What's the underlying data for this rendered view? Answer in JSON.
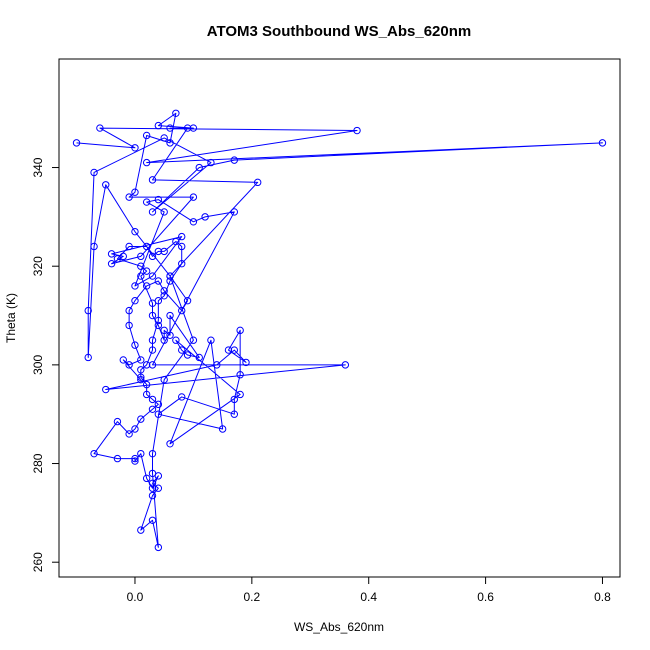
{
  "chart_data": {
    "type": "line",
    "title": "ATOM3 Southbound WS_Abs_620nm",
    "xlabel": "WS_Abs_620nm",
    "ylabel": "Theta (K)",
    "xlim": [
      -0.13,
      0.83
    ],
    "ylim": [
      257,
      362
    ],
    "x_ticks": [
      0.0,
      0.2,
      0.4,
      0.6,
      0.8
    ],
    "x_tick_labels": [
      "0.0",
      "0.2",
      "0.4",
      "0.6",
      "0.8"
    ],
    "y_ticks": [
      260,
      280,
      300,
      320,
      340
    ],
    "y_tick_labels": [
      "260",
      "280",
      "300",
      "320",
      "340"
    ],
    "grid": false,
    "marker": "open-circle",
    "series": [
      {
        "color": "#0000ff",
        "points": [
          [
            -0.1,
            345
          ],
          [
            0.0,
            344
          ],
          [
            -0.06,
            348
          ],
          [
            0.38,
            347.5
          ],
          [
            0.02,
            341
          ],
          [
            0.8,
            345
          ],
          [
            0.17,
            341.5
          ],
          [
            0.11,
            340
          ],
          [
            0.03,
            331
          ],
          [
            0.13,
            341
          ],
          [
            0.05,
            346
          ],
          [
            -0.07,
            339
          ],
          [
            -0.08,
            311
          ],
          [
            -0.08,
            301.5
          ],
          [
            -0.07,
            324
          ],
          [
            -0.05,
            336.5
          ],
          [
            0.0,
            327
          ],
          [
            0.06,
            318
          ],
          [
            0.21,
            337
          ],
          [
            0.03,
            337.5
          ],
          [
            0.09,
            348
          ],
          [
            0.06,
            348
          ],
          [
            0.1,
            348
          ],
          [
            0.04,
            348.5
          ],
          [
            0.07,
            351
          ],
          [
            0.06,
            345
          ],
          [
            0.02,
            346.5
          ],
          [
            0.0,
            335
          ],
          [
            -0.01,
            334
          ],
          [
            0.1,
            334
          ],
          [
            0.01,
            322
          ],
          [
            -0.04,
            320.5
          ],
          [
            -0.02,
            322
          ],
          [
            -0.04,
            322.5
          ],
          [
            0.08,
            326
          ],
          [
            0.03,
            318
          ],
          [
            0.0,
            316
          ],
          [
            0.05,
            331
          ],
          [
            0.02,
            333
          ],
          [
            0.04,
            333.5
          ],
          [
            0.1,
            329
          ],
          [
            0.12,
            330
          ],
          [
            0.17,
            331
          ],
          [
            0.03,
            300
          ],
          [
            0.36,
            300
          ],
          [
            -0.05,
            295
          ],
          [
            0.14,
            300
          ],
          [
            0.17,
            303
          ],
          [
            0.19,
            300.5
          ],
          [
            0.16,
            303
          ],
          [
            0.18,
            307
          ],
          [
            0.18,
            298
          ],
          [
            0.17,
            293
          ],
          [
            0.17,
            290
          ],
          [
            0.08,
            293.5
          ],
          [
            0.04,
            290
          ],
          [
            0.15,
            287
          ],
          [
            0.13,
            305
          ],
          [
            0.06,
            284
          ],
          [
            0.18,
            294
          ],
          [
            0.07,
            305
          ],
          [
            0.08,
            303
          ],
          [
            0.09,
            302
          ],
          [
            0.11,
            301.5
          ],
          [
            0.06,
            310
          ],
          [
            0.06,
            306
          ],
          [
            0.05,
            307
          ],
          [
            0.05,
            305
          ],
          [
            0.04,
            308
          ],
          [
            0.03,
            310
          ],
          [
            0.03,
            312.5
          ],
          [
            0.01,
            318
          ],
          [
            0.02,
            319
          ],
          [
            0.01,
            320
          ],
          [
            -0.03,
            321.5
          ],
          [
            -0.01,
            324
          ],
          [
            0.02,
            324
          ],
          [
            0.03,
            322
          ],
          [
            0.04,
            323
          ],
          [
            0.05,
            323
          ],
          [
            0.07,
            325
          ],
          [
            0.08,
            324
          ],
          [
            0.08,
            320.5
          ],
          [
            0.06,
            317
          ],
          [
            0.05,
            314
          ],
          [
            0.04,
            313
          ],
          [
            0.04,
            309
          ],
          [
            0.03,
            305
          ],
          [
            0.03,
            303
          ],
          [
            0.02,
            300
          ],
          [
            0.01,
            299
          ],
          [
            0.01,
            297.5
          ],
          [
            0.02,
            296
          ],
          [
            0.02,
            294
          ],
          [
            0.03,
            293
          ],
          [
            0.04,
            292
          ],
          [
            0.03,
            291
          ],
          [
            0.01,
            289
          ],
          [
            0.0,
            287
          ],
          [
            -0.01,
            286
          ],
          [
            -0.03,
            288.5
          ],
          [
            -0.07,
            282
          ],
          [
            -0.03,
            281
          ],
          [
            0.0,
            281
          ],
          [
            0.0,
            280.5
          ],
          [
            0.01,
            282
          ],
          [
            0.02,
            277
          ],
          [
            0.03,
            275
          ],
          [
            0.04,
            277.5
          ],
          [
            0.03,
            276
          ],
          [
            0.04,
            275
          ],
          [
            0.03,
            273.5
          ],
          [
            0.01,
            266.5
          ],
          [
            0.03,
            268.5
          ],
          [
            0.04,
            263
          ],
          [
            0.03,
            278
          ],
          [
            0.03,
            282
          ],
          [
            0.05,
            297
          ],
          [
            0.1,
            305
          ],
          [
            0.06,
            318
          ],
          [
            0.09,
            313
          ],
          [
            0.08,
            311
          ],
          [
            0.05,
            315
          ],
          [
            0.04,
            317
          ],
          [
            0.02,
            316
          ],
          [
            0.0,
            313
          ],
          [
            -0.01,
            311
          ],
          [
            -0.01,
            308
          ],
          [
            0.0,
            304
          ],
          [
            0.01,
            301
          ],
          [
            -0.01,
            300
          ],
          [
            -0.02,
            301
          ],
          [
            0.01,
            297
          ]
        ]
      }
    ]
  }
}
